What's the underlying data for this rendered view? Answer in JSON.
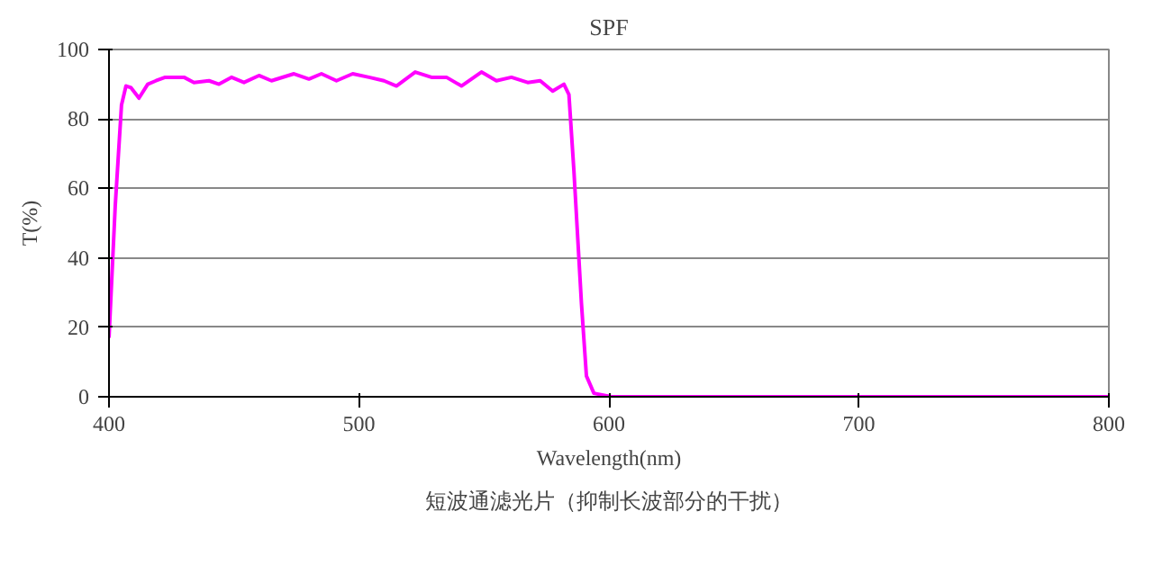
{
  "chart_data": {
    "type": "line",
    "title": "SPF",
    "xlabel": "Wavelength(nm)",
    "ylabel": "T(%)",
    "annotations": [
      "短波通滤光片（抑制长波部分的干扰）"
    ],
    "series": [
      {
        "color": "#ff00ff",
        "x": [
          400,
          402.5,
          405,
          406.8,
          408.8,
          412,
          415.5,
          418.8,
          422.5,
          426,
          430,
          434,
          440,
          444,
          449,
          454,
          460,
          465,
          474,
          480,
          485,
          491,
          497.5,
          504,
          510,
          515,
          522.5,
          529,
          535,
          541,
          549,
          555,
          561,
          567.5,
          572.5,
          577.5,
          582,
          584,
          586,
          589,
          591,
          594,
          601,
          700,
          800
        ],
        "values": [
          17,
          55,
          84,
          89.5,
          89,
          86,
          90,
          91,
          92,
          92,
          92,
          90.5,
          91,
          90,
          92,
          90.5,
          92.5,
          91,
          93,
          91.5,
          93,
          91,
          93,
          92,
          91,
          89.5,
          93.5,
          92,
          92,
          89.5,
          93.5,
          91,
          92,
          90.5,
          91,
          88,
          90,
          87,
          65,
          27,
          6,
          1,
          0,
          0,
          0
        ]
      }
    ],
    "xlim": [
      400,
      800
    ],
    "ylim": [
      0,
      100
    ],
    "xticks": [
      400,
      500,
      600,
      700,
      800
    ],
    "yticks": [
      0,
      20,
      40,
      60,
      80,
      100
    ],
    "grid": "y",
    "marker": "none",
    "line_style": "solid"
  }
}
